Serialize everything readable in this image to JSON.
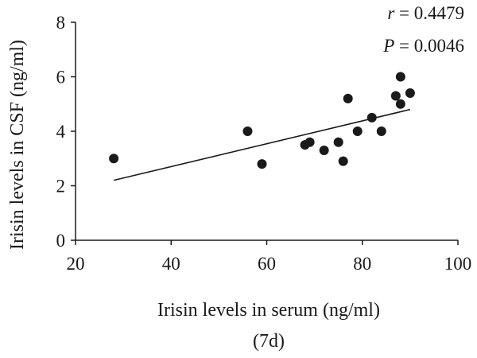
{
  "chart_data": {
    "type": "scatter",
    "title": "",
    "xlabel": "Irisin levels in serum (ng/ml)",
    "xlabel_line2": "(7d)",
    "ylabel": "Irisin levels in CSF (ng/ml)",
    "xlim": [
      20,
      100
    ],
    "ylim": [
      0,
      8
    ],
    "x_ticks": [
      20,
      40,
      60,
      80,
      100
    ],
    "y_ticks": [
      0,
      2,
      4,
      6,
      8
    ],
    "grid": false,
    "points": [
      {
        "x": 28,
        "y": 3.0
      },
      {
        "x": 56,
        "y": 4.0
      },
      {
        "x": 59,
        "y": 2.8
      },
      {
        "x": 68,
        "y": 3.5
      },
      {
        "x": 69,
        "y": 3.6
      },
      {
        "x": 72,
        "y": 3.3
      },
      {
        "x": 75,
        "y": 3.6
      },
      {
        "x": 76,
        "y": 2.9
      },
      {
        "x": 77,
        "y": 5.2
      },
      {
        "x": 79,
        "y": 4.0
      },
      {
        "x": 82,
        "y": 4.5
      },
      {
        "x": 84,
        "y": 4.0
      },
      {
        "x": 87,
        "y": 5.3
      },
      {
        "x": 88,
        "y": 6.0
      },
      {
        "x": 88,
        "y": 5.0
      },
      {
        "x": 90,
        "y": 5.4
      }
    ],
    "trendline": {
      "x": [
        28,
        90
      ],
      "y": [
        2.2,
        4.8
      ]
    },
    "stats": {
      "r_symbol": "r",
      "r_value": " = 0.4479",
      "p_symbol": "P",
      "p_value": " = 0.0046"
    }
  }
}
